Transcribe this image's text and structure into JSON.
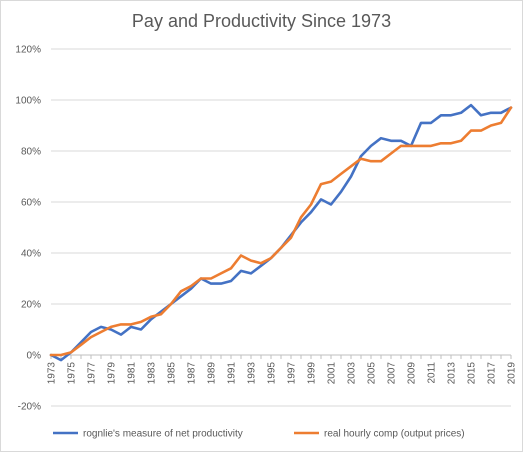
{
  "chart_data": {
    "type": "line",
    "title": "Pay and Productivity Since 1973",
    "xlabel": "",
    "ylabel": "",
    "ylim": [
      -0.2,
      1.2
    ],
    "y_ticks": [
      "-20%",
      "0%",
      "20%",
      "40%",
      "60%",
      "80%",
      "100%",
      "120%"
    ],
    "x": [
      1973,
      1974,
      1975,
      1976,
      1977,
      1978,
      1979,
      1980,
      1981,
      1982,
      1983,
      1984,
      1985,
      1986,
      1987,
      1988,
      1989,
      1990,
      1991,
      1992,
      1993,
      1994,
      1995,
      1996,
      1997,
      1998,
      1999,
      2000,
      2001,
      2002,
      2003,
      2004,
      2005,
      2006,
      2007,
      2008,
      2009,
      2010,
      2011,
      2012,
      2013,
      2014,
      2015,
      2016,
      2017,
      2018,
      2019
    ],
    "x_tick_labels": [
      "1973",
      "1975",
      "1977",
      "1979",
      "1981",
      "1983",
      "1985",
      "1987",
      "1989",
      "1991",
      "1993",
      "1995",
      "1997",
      "1999",
      "2001",
      "2003",
      "2005",
      "2007",
      "2009",
      "2011",
      "2013",
      "2015",
      "2017",
      "2019"
    ],
    "grid": true,
    "legend_position": "bottom",
    "series": [
      {
        "name": "rognlie's measure of net productivity",
        "color": "#4472c4",
        "values": [
          0.0,
          -0.02,
          0.01,
          0.05,
          0.09,
          0.11,
          0.1,
          0.08,
          0.11,
          0.1,
          0.14,
          0.17,
          0.2,
          0.23,
          0.26,
          0.3,
          0.28,
          0.28,
          0.29,
          0.33,
          0.32,
          0.35,
          0.38,
          0.42,
          0.47,
          0.52,
          0.56,
          0.61,
          0.59,
          0.64,
          0.7,
          0.78,
          0.82,
          0.85,
          0.84,
          0.84,
          0.82,
          0.91,
          0.91,
          0.94,
          0.94,
          0.95,
          0.98,
          0.94,
          0.95,
          0.95,
          0.97
        ]
      },
      {
        "name": "real hourly comp (output prices)",
        "color": "#ed7d31",
        "values": [
          0.0,
          0.0,
          0.01,
          0.04,
          0.07,
          0.09,
          0.11,
          0.12,
          0.12,
          0.13,
          0.15,
          0.16,
          0.2,
          0.25,
          0.27,
          0.3,
          0.3,
          0.32,
          0.34,
          0.39,
          0.37,
          0.36,
          0.38,
          0.42,
          0.46,
          0.54,
          0.59,
          0.67,
          0.68,
          0.71,
          0.74,
          0.77,
          0.76,
          0.76,
          0.79,
          0.82,
          0.82,
          0.82,
          0.82,
          0.83,
          0.83,
          0.84,
          0.88,
          0.88,
          0.9,
          0.91,
          0.97
        ]
      }
    ]
  }
}
